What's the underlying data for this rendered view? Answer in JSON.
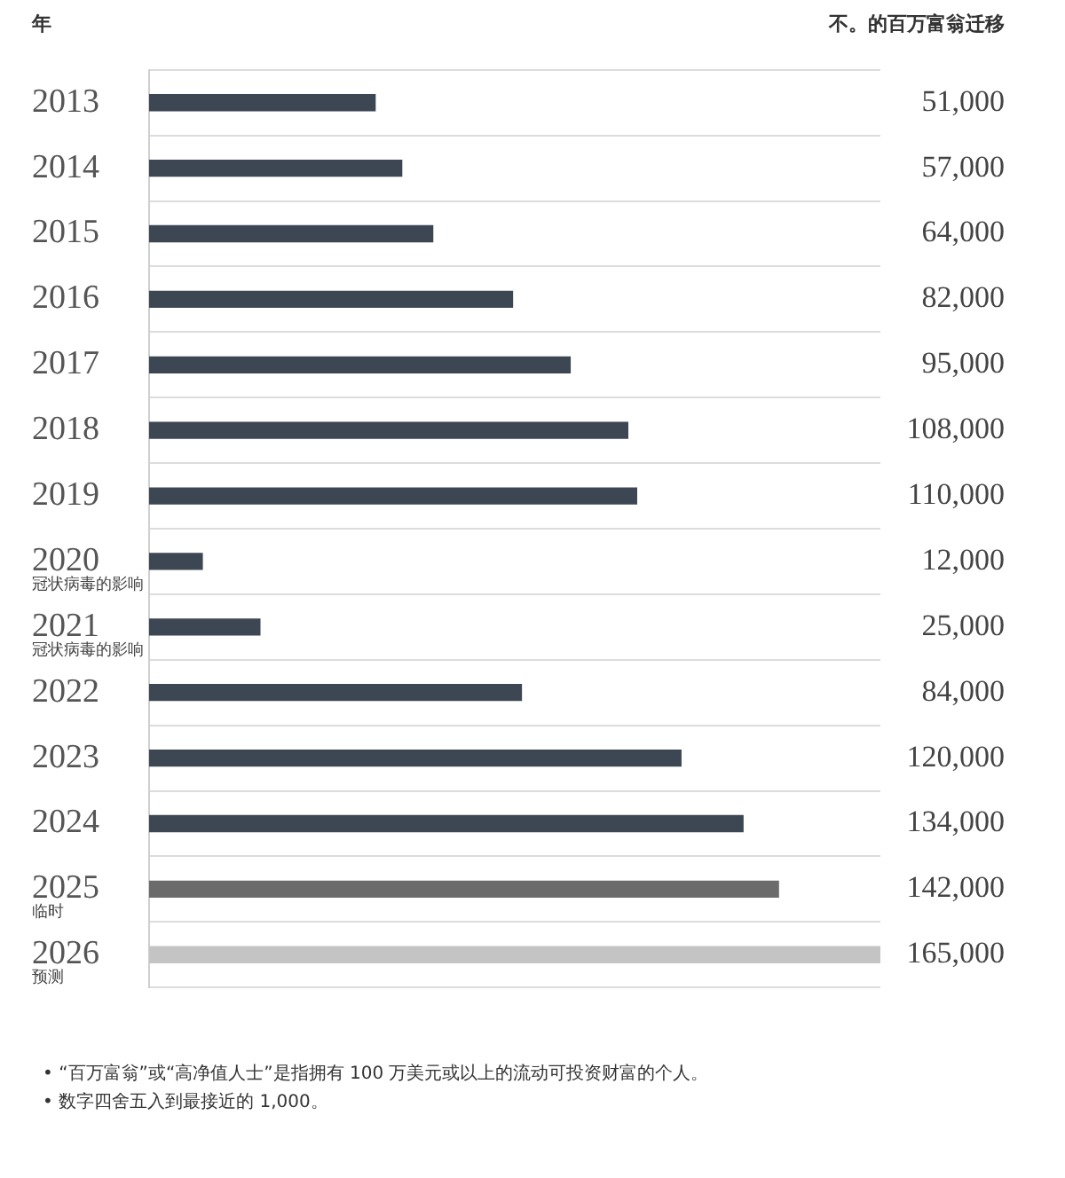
{
  "chart_data": {
    "type": "bar",
    "orientation": "horizontal",
    "ylabel": "年",
    "categories": [
      "2013",
      "2014",
      "2015",
      "2016",
      "2017",
      "2018",
      "2019",
      "2020\n冠状病毒的影响",
      "2021\n冠状病毒的影响",
      "2022",
      "2023",
      "2024",
      "2025\n临时",
      "2026\n预测"
    ],
    "values": [
      51000,
      57000,
      64000,
      82000,
      95000,
      108000,
      110000,
      12000,
      25000,
      84000,
      120000,
      134000,
      142000,
      165000
    ],
    "colors": [
      "#3d4753",
      "#3d4753",
      "#3d4753",
      "#3d4753",
      "#3d4753",
      "#3d4753",
      "#3d4753",
      "#3d4753",
      "#3d4753",
      "#3d4753",
      "#3d4753",
      "#3d4753",
      "#6b6b6b",
      "#c4c4c4"
    ],
    "value_labels": [
      "51,000",
      "57,000",
      "64,000",
      "82,000",
      "95,000",
      "108,000",
      "110,000",
      "12,000",
      "25,000",
      "84,000",
      "120,000",
      "134,000",
      "142,000",
      "165,000"
    ],
    "grid": "y",
    "annotations": [
      "不。的百万富翁迁移",
      "• “百万富翁”或“高净值人士”是指拥有 100 万美元或以上的流动可投资财富的个人。",
      "• 数字四舍五入到最接近的 1,000。"
    ]
  }
}
